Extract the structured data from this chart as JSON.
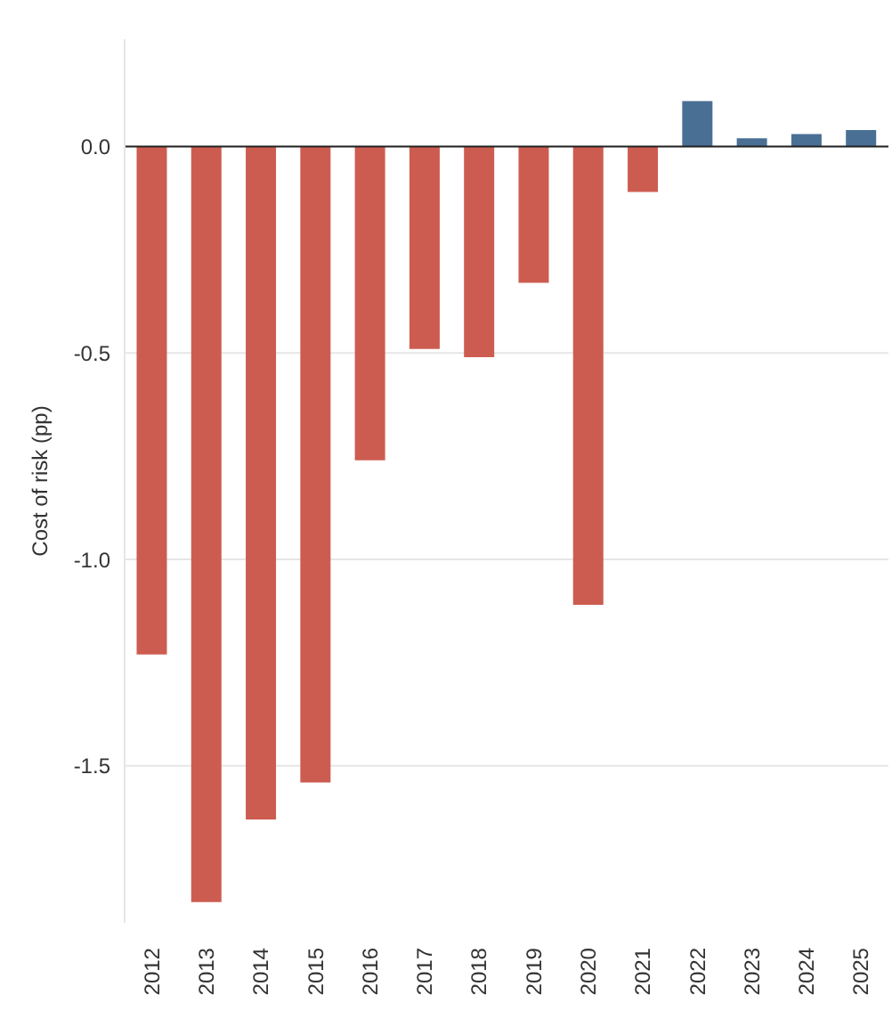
{
  "chart_data": {
    "type": "bar",
    "ylabel": "Cost of risk (pp)",
    "categories": [
      "2012",
      "2013",
      "2014",
      "2015",
      "2016",
      "2017",
      "2018",
      "2019",
      "2020",
      "2021",
      "2022",
      "2023",
      "2024",
      "2025"
    ],
    "values": [
      -1.23,
      -1.83,
      -1.63,
      -1.54,
      -0.76,
      -0.49,
      -0.51,
      -0.33,
      -1.11,
      -0.11,
      0.11,
      0.02,
      0.03,
      0.04
    ],
    "colors": [
      "#cd5c50",
      "#cd5c50",
      "#cd5c50",
      "#cd5c50",
      "#cd5c50",
      "#cd5c50",
      "#cd5c50",
      "#cd5c50",
      "#cd5c50",
      "#cd5c50",
      "#4a6f94",
      "#4a6f94",
      "#4a6f94",
      "#4a6f94"
    ],
    "ylim": [
      -1.88,
      0.26
    ],
    "yticks": [
      {
        "value": 0,
        "label": "0.0"
      },
      {
        "value": -0.5,
        "label": "-0.5"
      },
      {
        "value": -1,
        "label": "-1.0"
      },
      {
        "value": -1.5,
        "label": "-1.5"
      }
    ],
    "grid": "y",
    "legend": false,
    "ref_lines": [
      {
        "axis": "y",
        "value": 0,
        "label": null,
        "color": "#222222"
      }
    ]
  }
}
